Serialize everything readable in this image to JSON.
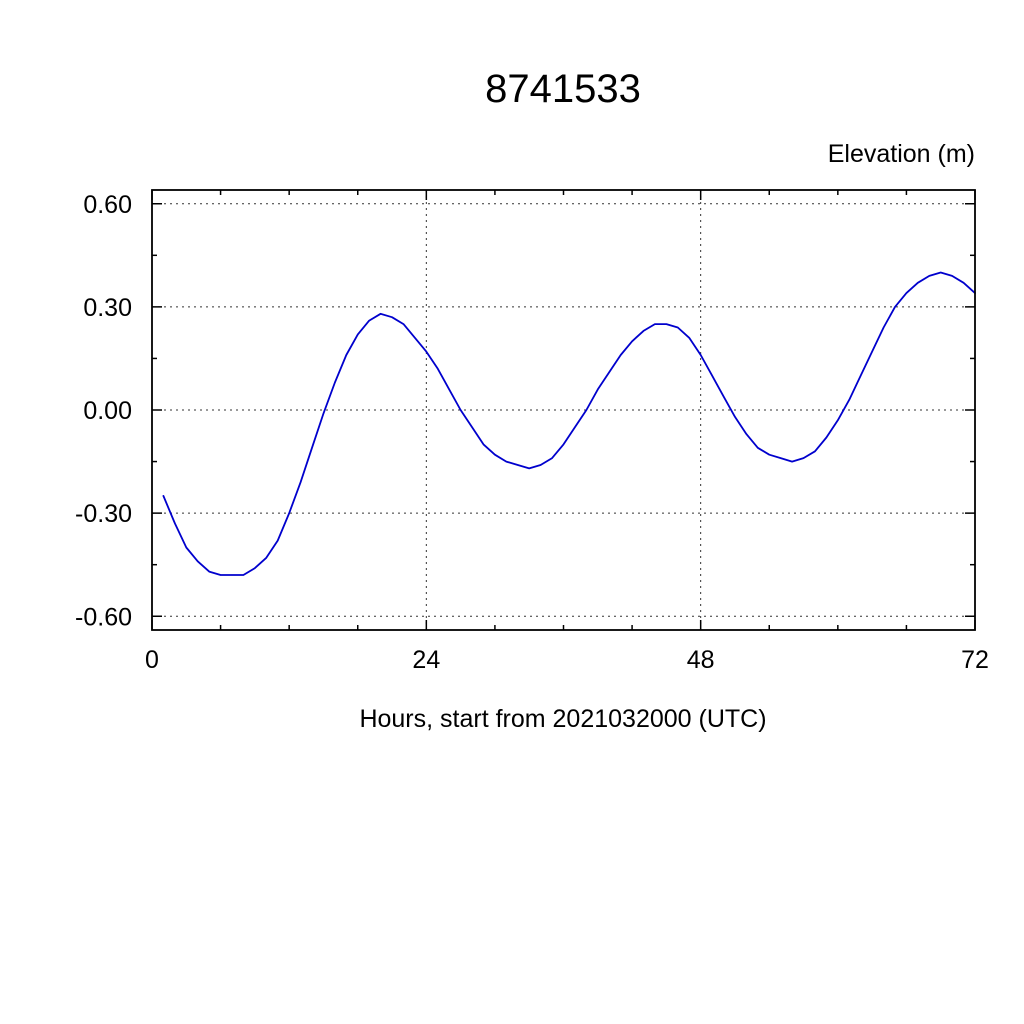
{
  "chart_data": {
    "type": "line",
    "title": "8741533",
    "ylabel": "Elevation (m)",
    "xlabel": "Hours, start from 2021032000 (UTC)",
    "xlim": [
      0,
      72
    ],
    "ylim": [
      -0.64,
      0.64
    ],
    "xticks": [
      0,
      24,
      48,
      72
    ],
    "xtick_labels": [
      "0",
      "24",
      "48",
      "72"
    ],
    "xtick_minor": [
      6,
      12,
      18,
      30,
      36,
      42,
      54,
      60,
      66
    ],
    "yticks": [
      0.6,
      0.3,
      0.0,
      -0.3,
      -0.6
    ],
    "ytick_labels": [
      "0.60",
      "0.30",
      "0.00",
      "-0.30",
      "-0.60"
    ],
    "ytick_minor": [
      0.45,
      0.15,
      -0.15,
      -0.45
    ],
    "grid": "dashed",
    "grid_x_values": [
      24,
      48
    ],
    "grid_y_values": [
      0.6,
      0.3,
      0.0,
      -0.3,
      -0.6
    ],
    "legend": "none",
    "line_color": "#0000cd",
    "axis_color": "#000000",
    "grid_color": "#333333",
    "series": [
      {
        "name": "elevation",
        "x": [
          1,
          2,
          3,
          4,
          5,
          6,
          7,
          8,
          9,
          10,
          11,
          12,
          13,
          14,
          15,
          16,
          17,
          18,
          19,
          20,
          21,
          22,
          23,
          24,
          25,
          26,
          27,
          28,
          29,
          30,
          31,
          32,
          33,
          34,
          35,
          36,
          37,
          38,
          39,
          40,
          41,
          42,
          43,
          44,
          45,
          46,
          47,
          48,
          49,
          50,
          51,
          52,
          53,
          54,
          55,
          56,
          57,
          58,
          59,
          60,
          61,
          62,
          63,
          64,
          65,
          66,
          67,
          68,
          69,
          70,
          71,
          72
        ],
        "y": [
          -0.25,
          -0.33,
          -0.4,
          -0.44,
          -0.47,
          -0.48,
          -0.48,
          -0.48,
          -0.46,
          -0.43,
          -0.38,
          -0.3,
          -0.21,
          -0.11,
          -0.01,
          0.08,
          0.16,
          0.22,
          0.26,
          0.28,
          0.27,
          0.25,
          0.21,
          0.17,
          0.12,
          0.06,
          0.0,
          -0.05,
          -0.1,
          -0.13,
          -0.15,
          -0.16,
          -0.17,
          -0.16,
          -0.14,
          -0.1,
          -0.05,
          0.0,
          0.06,
          0.11,
          0.16,
          0.2,
          0.23,
          0.25,
          0.25,
          0.24,
          0.21,
          0.16,
          0.1,
          0.04,
          -0.02,
          -0.07,
          -0.11,
          -0.13,
          -0.14,
          -0.15,
          -0.14,
          -0.12,
          -0.08,
          -0.03,
          0.03,
          0.1,
          0.17,
          0.24,
          0.3,
          0.34,
          0.37,
          0.39,
          0.4,
          0.39,
          0.37,
          0.34
        ]
      }
    ]
  }
}
